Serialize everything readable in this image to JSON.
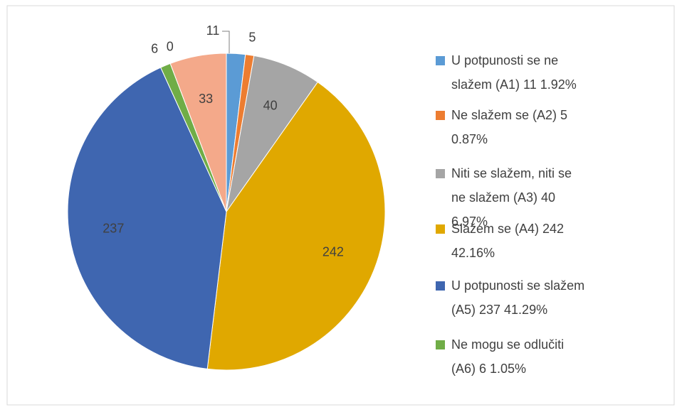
{
  "chart_data": {
    "type": "pie",
    "categories": [
      "U potpunosti se ne slažem (A1) 11 1.92%",
      "Ne slažem se (A2) 5 0.87%",
      "Niti se slažem, niti se ne slažem (A3) 40 6.97%",
      "Slažem se (A4) 242 42.16%",
      "U potpunosti se slažem (A5) 237 41.29%",
      "Ne mogu se odlučiti (A6) 6 1.05%",
      null,
      null
    ],
    "values": [
      11,
      5,
      40,
      242,
      237,
      6,
      0,
      33
    ],
    "colors": [
      "#5b9bd5",
      "#ed7d31",
      "#a5a5a5",
      "#e0a800",
      "#3f66b0",
      "#70ad47",
      "#264478",
      "#f4a98a"
    ],
    "legend": "right"
  }
}
